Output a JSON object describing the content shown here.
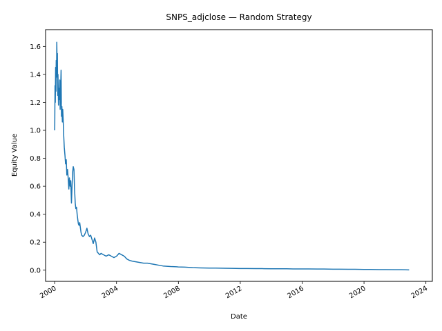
{
  "chart_data": {
    "type": "line",
    "title": "SNPS_adjclose — Random Strategy",
    "xlabel": "Date",
    "ylabel": "Equity Value",
    "x_ticks": [
      "2000",
      "2004",
      "2008",
      "2012",
      "2016",
      "2020",
      "2024"
    ],
    "y_ticks": [
      "0.0",
      "0.2",
      "0.4",
      "0.6",
      "0.8",
      "1.0",
      "1.2",
      "1.4",
      "1.6"
    ],
    "xlim": [
      "1999-06-01",
      "2024-06-01"
    ],
    "ylim": [
      -0.08,
      1.72
    ],
    "grid": false,
    "legend": "none",
    "line_color": "#1f77b4",
    "series": [
      {
        "x": [
          "2000-01-03",
          "2000-01-10",
          "2000-01-17",
          "2000-01-24",
          "2000-02-01",
          "2000-02-07",
          "2000-02-14",
          "2000-02-21",
          "2000-03-01",
          "2000-03-06",
          "2000-03-13",
          "2000-03-20",
          "2000-04-01",
          "2000-04-10",
          "2000-04-20",
          "2000-05-01",
          "2000-05-10",
          "2000-05-20",
          "2000-06-01",
          "2000-06-10",
          "2000-06-20",
          "2000-07-01",
          "2000-07-10",
          "2000-07-20",
          "2000-08-01",
          "2000-08-15",
          "2000-09-01",
          "2000-09-15",
          "2000-10-01",
          "2000-10-15",
          "2000-11-01",
          "2000-11-15",
          "2000-12-01",
          "2000-12-15",
          "2001-01-01",
          "2001-01-15",
          "2001-02-01",
          "2001-02-15",
          "2001-03-01",
          "2001-03-15",
          "2001-04-01",
          "2001-04-15",
          "2001-05-01",
          "2001-05-15",
          "2001-06-01",
          "2001-06-15",
          "2001-07-01",
          "2001-07-15",
          "2001-08-01",
          "2001-08-15",
          "2001-09-01",
          "2001-09-15",
          "2001-10-01",
          "2001-11-01",
          "2001-12-01",
          "2002-01-01",
          "2002-02-01",
          "2002-03-01",
          "2002-04-01",
          "2002-05-01",
          "2002-06-01",
          "2002-07-01",
          "2002-08-01",
          "2002-09-01",
          "2002-10-01",
          "2002-11-01",
          "2002-12-01",
          "2003-01-01",
          "2003-03-01",
          "2003-05-01",
          "2003-07-01",
          "2003-09-01",
          "2003-11-01",
          "2004-01-01",
          "2004-03-01",
          "2004-05-01",
          "2004-07-01",
          "2004-09-01",
          "2004-11-01",
          "2005-01-01",
          "2005-04-01",
          "2005-07-01",
          "2005-10-01",
          "2006-01-01",
          "2006-04-01",
          "2006-07-01",
          "2006-10-01",
          "2007-01-01",
          "2007-04-01",
          "2007-07-01",
          "2007-10-01",
          "2008-01-01",
          "2008-06-01",
          "2008-09-01",
          "2008-12-01",
          "2009-06-01",
          "2010-01-01",
          "2010-06-01",
          "2011-01-01",
          "2011-06-01",
          "2012-01-01",
          "2012-06-01",
          "2013-01-01",
          "2013-06-01",
          "2014-01-01",
          "2014-06-01",
          "2015-01-01",
          "2015-06-01",
          "2016-01-01",
          "2016-06-01",
          "2017-01-01",
          "2017-06-01",
          "2018-01-01",
          "2018-06-01",
          "2019-01-01",
          "2019-06-01",
          "2020-01-01",
          "2020-06-01",
          "2021-01-01",
          "2021-06-01",
          "2022-01-01",
          "2022-06-01",
          "2022-12-01"
        ],
        "y": [
          1.0,
          1.32,
          1.2,
          1.45,
          1.28,
          1.5,
          1.38,
          1.63,
          1.42,
          1.55,
          1.25,
          1.4,
          1.18,
          1.3,
          1.22,
          1.36,
          1.15,
          1.28,
          1.43,
          1.1,
          1.17,
          1.06,
          1.15,
          1.08,
          0.97,
          0.88,
          0.82,
          0.76,
          0.79,
          0.68,
          0.72,
          0.66,
          0.58,
          0.66,
          0.6,
          0.64,
          0.48,
          0.6,
          0.7,
          0.74,
          0.72,
          0.58,
          0.48,
          0.44,
          0.45,
          0.4,
          0.36,
          0.33,
          0.32,
          0.34,
          0.3,
          0.27,
          0.25,
          0.24,
          0.25,
          0.27,
          0.3,
          0.26,
          0.24,
          0.25,
          0.22,
          0.19,
          0.23,
          0.2,
          0.13,
          0.12,
          0.11,
          0.12,
          0.11,
          0.1,
          0.11,
          0.1,
          0.09,
          0.1,
          0.12,
          0.11,
          0.1,
          0.08,
          0.07,
          0.065,
          0.06,
          0.055,
          0.05,
          0.05,
          0.045,
          0.04,
          0.035,
          0.03,
          0.028,
          0.026,
          0.025,
          0.023,
          0.022,
          0.02,
          0.018,
          0.016,
          0.015,
          0.015,
          0.014,
          0.013,
          0.012,
          0.012,
          0.011,
          0.011,
          0.01,
          0.01,
          0.01,
          0.009,
          0.009,
          0.009,
          0.008,
          0.008,
          0.007,
          0.007,
          0.006,
          0.006,
          0.005,
          0.005,
          0.004,
          0.004,
          0.003,
          0.003,
          0.002
        ]
      }
    ]
  }
}
